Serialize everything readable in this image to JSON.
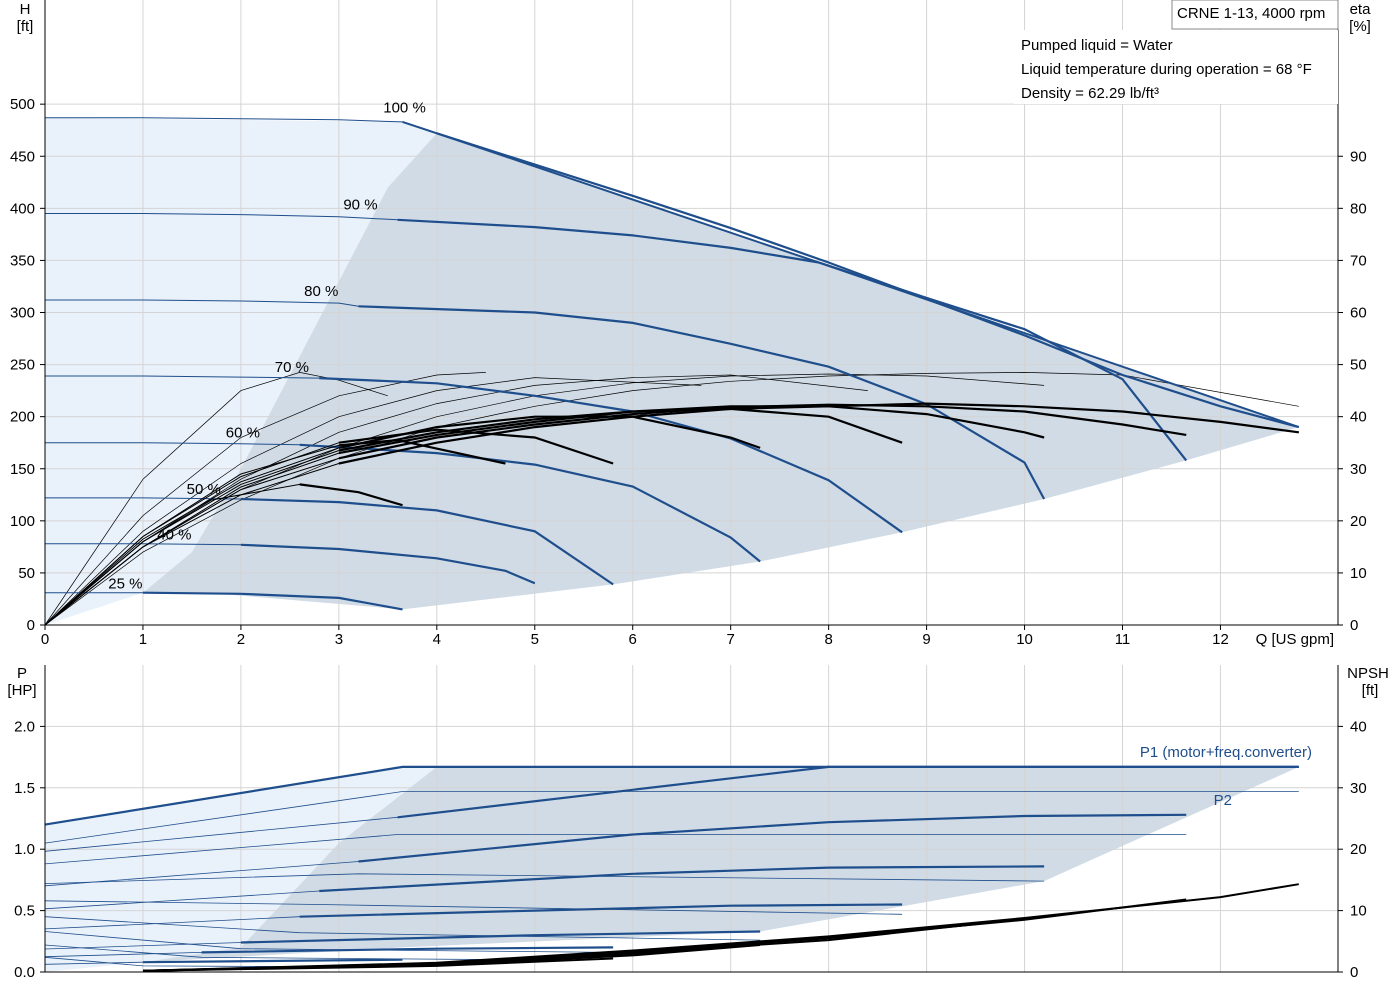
{
  "title_box": "CRNE 1-13, 4000 rpm",
  "info_lines": [
    "Pumped liquid = Water",
    "Liquid temperature during operation = 68 °F",
    "Density = 62.29 lb/ft³"
  ],
  "colors": {
    "curve_blue": "#1f4e8c",
    "shade_dark": "#d0dbe6",
    "shade_light": "#e9f1fa",
    "eff_black": "#000000"
  },
  "chart_data": [
    {
      "type": "line",
      "name_key": "head-efficiency",
      "xlabel": "Q [US gpm]",
      "ylabel": "H\n[ft]",
      "y2label": "eta\n[%]",
      "xlim": [
        0,
        13.2
      ],
      "ylim": [
        0,
        500
      ],
      "y2lim": [
        0,
        100
      ],
      "x_ticks": [
        0,
        1,
        2,
        3,
        4,
        5,
        6,
        7,
        8,
        9,
        10,
        11,
        12
      ],
      "y_ticks": [
        0,
        50,
        100,
        150,
        200,
        250,
        300,
        350,
        400,
        450,
        500
      ],
      "y2_ticks": [
        0,
        10,
        20,
        30,
        40,
        50,
        60,
        70,
        80,
        90
      ],
      "grid": true,
      "speed_labels": [
        "100 %",
        "90 %",
        "80 %",
        "70 %",
        "60 %",
        "50 %",
        "40 %",
        "25 %"
      ],
      "head_curves": [
        {
          "speed": 100,
          "x": [
            0,
            1,
            2,
            3,
            3.65,
            4,
            5,
            6,
            7,
            8,
            9,
            10,
            11,
            12,
            12.8
          ],
          "y": [
            487,
            487,
            486,
            485,
            483,
            472,
            442,
            412,
            381,
            348,
            313,
            278,
            240,
            210,
            190
          ]
        },
        {
          "speed": 90,
          "x": [
            0,
            1,
            2,
            3,
            3.6,
            5,
            6,
            7,
            7.9,
            9,
            10,
            11,
            11.65
          ],
          "y": [
            395,
            395,
            394,
            392,
            389,
            382,
            374,
            362,
            348,
            314,
            284,
            236,
            158
          ]
        },
        {
          "speed": 80,
          "x": [
            0,
            1,
            2,
            3,
            3.2,
            5,
            6,
            7,
            8,
            9,
            10,
            10.2
          ],
          "y": [
            312,
            312,
            311,
            309,
            306,
            300,
            290,
            270,
            248,
            212,
            156,
            121
          ]
        },
        {
          "speed": 70,
          "x": [
            0,
            1,
            2,
            2.8,
            4,
            5,
            6,
            7,
            8,
            8.75
          ],
          "y": [
            239,
            239,
            238,
            237,
            232,
            220,
            205,
            179,
            139,
            89
          ]
        },
        {
          "speed": 60,
          "x": [
            0,
            1,
            2,
            2.6,
            4,
            5,
            6,
            7,
            7.3
          ],
          "y": [
            175,
            175,
            174,
            173,
            165,
            154,
            133,
            84,
            61
          ]
        },
        {
          "speed": 50,
          "x": [
            0,
            1,
            2,
            3,
            4,
            5,
            5.8
          ],
          "y": [
            122,
            122,
            121,
            118,
            110,
            90,
            39
          ]
        },
        {
          "speed": 40,
          "x": [
            0,
            1,
            2,
            3,
            4,
            4.7,
            5
          ],
          "y": [
            78,
            78,
            77,
            73,
            64,
            52,
            40
          ]
        },
        {
          "speed": 25,
          "x": [
            0,
            1,
            2,
            3,
            3.65
          ],
          "y": [
            31,
            31,
            30,
            26,
            15
          ]
        }
      ],
      "efficiency_curves": [
        {
          "x": [
            0,
            1,
            2,
            3,
            4,
            5,
            6,
            7,
            8,
            9,
            10,
            11,
            12,
            12.8
          ],
          "y": [
            0,
            15,
            25,
            31,
            35,
            38,
            40,
            41.5,
            42,
            42.5,
            42,
            41,
            39,
            37
          ]
        },
        {
          "x": [
            0,
            1,
            2,
            3,
            4,
            5,
            6,
            7,
            8,
            9,
            10,
            11,
            11.65
          ],
          "y": [
            0,
            15,
            26,
            32,
            36,
            38.5,
            40.5,
            41.8,
            42.3,
            42,
            41,
            38.5,
            36.5
          ]
        },
        {
          "x": [
            0,
            1,
            2,
            3,
            4,
            5,
            6,
            7,
            8,
            9,
            10,
            10.2
          ],
          "y": [
            0,
            15,
            26.5,
            33,
            36.5,
            39,
            41,
            42,
            42,
            40.5,
            37,
            36
          ]
        },
        {
          "x": [
            0,
            1,
            2,
            3,
            4,
            5,
            6,
            7,
            8,
            8.75
          ],
          "y": [
            0,
            16,
            27,
            33.5,
            37,
            39.5,
            41,
            41.5,
            40,
            35
          ]
        },
        {
          "x": [
            0,
            1,
            2,
            3,
            4,
            5,
            6,
            7,
            7.3
          ],
          "y": [
            0,
            16.5,
            27.5,
            34,
            38,
            40,
            40,
            36,
            34
          ]
        },
        {
          "x": [
            0,
            1,
            2,
            3,
            4,
            5,
            5.8
          ],
          "y": [
            0,
            17,
            28.5,
            35,
            37.5,
            36,
            31
          ]
        },
        {
          "x": [
            0,
            1,
            2,
            3,
            3.6,
            4.7
          ],
          "y": [
            0,
            17,
            29,
            34.5,
            35.5,
            31
          ]
        },
        {
          "x": [
            0,
            1,
            1.7,
            2.6,
            3.2,
            3.65
          ],
          "y": [
            0,
            16,
            24,
            27,
            25.5,
            23
          ]
        }
      ],
      "reference_efficiency_curves": [
        {
          "x": [
            0,
            1,
            2,
            2.6,
            3,
            3.5
          ],
          "y": [
            0,
            28,
            45,
            48.5,
            47,
            44
          ]
        },
        {
          "x": [
            0,
            1,
            2,
            3,
            4,
            4.5
          ],
          "y": [
            0,
            21,
            36,
            44,
            48,
            48.5
          ]
        },
        {
          "x": [
            0,
            1,
            2,
            3,
            4,
            5,
            6.7
          ],
          "y": [
            0,
            18,
            31,
            40,
            45,
            47.5,
            46
          ]
        },
        {
          "x": [
            0,
            1,
            2,
            3,
            4,
            5,
            6,
            7,
            8.4
          ],
          "y": [
            0,
            16,
            28,
            37,
            42.5,
            46,
            47.5,
            48,
            45
          ]
        },
        {
          "x": [
            0,
            1,
            2,
            3,
            4,
            5,
            6,
            7,
            8,
            9,
            10.2
          ],
          "y": [
            0,
            15,
            26,
            34,
            40,
            44,
            46.5,
            47.8,
            48.2,
            47.8,
            46
          ]
        },
        {
          "x": [
            0,
            1,
            2,
            3,
            4,
            5,
            6,
            7,
            8,
            9,
            10,
            11,
            12.8
          ],
          "y": [
            0,
            14,
            24,
            32,
            38,
            42,
            45,
            46.8,
            47.8,
            48.3,
            48.5,
            48,
            42
          ]
        }
      ],
      "operating_envelope": {
        "x": [
          1,
          1.65,
          3.65,
          5.8,
          7.3,
          8.75,
          10.2,
          11.65,
          12.8,
          7.9,
          4.0,
          3.5,
          3.0,
          2.5,
          2.0,
          1.5
        ],
        "y": [
          31,
          31,
          15,
          39,
          61,
          89,
          121,
          158,
          190,
          348,
          472,
          420,
          330,
          240,
          150,
          70
        ]
      }
    },
    {
      "type": "line",
      "name_key": "power-npsh",
      "ylabel": "P\n[HP]",
      "y2label": "NPSH\n[ft]",
      "xlim": [
        0,
        13.2
      ],
      "ylim": [
        0,
        2.0
      ],
      "y2lim": [
        0,
        40
      ],
      "y_ticks": [
        0.0,
        0.5,
        1.0,
        1.5,
        2.0
      ],
      "y_tick_labels": [
        "0.0",
        "0.5",
        "1.0",
        "1.5",
        "2.0"
      ],
      "y2_ticks": [
        0,
        10,
        20,
        30,
        40
      ],
      "grid": true,
      "series_labels": [
        "P1 (motor+freq.converter)",
        "P2"
      ],
      "p1_curves": [
        {
          "x": [
            0,
            3.65,
            4,
            8,
            12.8
          ],
          "y": [
            1.2,
            1.67,
            1.67,
            1.67,
            1.67
          ]
        },
        {
          "x": [
            3.6,
            8,
            12.8
          ],
          "y": [
            1.26,
            1.67,
            1.67
          ]
        },
        {
          "x": [
            3.2,
            6,
            8,
            10,
            11.65
          ],
          "y": [
            0.9,
            1.12,
            1.22,
            1.27,
            1.28
          ]
        },
        {
          "x": [
            2.8,
            6,
            8,
            10.2
          ],
          "y": [
            0.66,
            0.8,
            0.85,
            0.86
          ]
        },
        {
          "x": [
            2.6,
            5,
            7,
            8.75
          ],
          "y": [
            0.45,
            0.5,
            0.54,
            0.55
          ]
        },
        {
          "x": [
            2.0,
            5,
            7.3
          ],
          "y": [
            0.24,
            0.3,
            0.33
          ]
        },
        {
          "x": [
            1.6,
            4,
            5.8
          ],
          "y": [
            0.16,
            0.19,
            0.2
          ]
        },
        {
          "x": [
            1.0,
            3.65
          ],
          "y": [
            0.08,
            0.1
          ]
        }
      ],
      "p2_curves": [
        {
          "x": [
            0,
            3.65,
            12.8
          ],
          "y": [
            1.05,
            1.47,
            1.47
          ]
        },
        {
          "x": [
            0,
            3.6,
            11.65
          ],
          "y": [
            0.88,
            1.12,
            1.12
          ]
        },
        {
          "x": [
            0,
            3.2,
            10.2
          ],
          "y": [
            0.72,
            0.8,
            0.74
          ]
        },
        {
          "x": [
            0,
            2.8,
            8.75
          ],
          "y": [
            0.58,
            0.55,
            0.47
          ]
        },
        {
          "x": [
            0,
            2.6,
            7.3
          ],
          "y": [
            0.45,
            0.32,
            0.26
          ]
        },
        {
          "x": [
            0,
            2.0,
            5.8
          ],
          "y": [
            0.33,
            0.19,
            0.16
          ]
        },
        {
          "x": [
            0,
            1.6,
            4.7
          ],
          "y": [
            0.22,
            0.12,
            0.1
          ]
        },
        {
          "x": [
            0,
            1.0,
            3.65
          ],
          "y": [
            0.12,
            0.05,
            0.04
          ]
        }
      ],
      "npsh_curves": [
        {
          "x": [
            1.0,
            4,
            6,
            8,
            10,
            12,
            12.8
          ],
          "y": [
            0.2,
            1.5,
            3.5,
            5.8,
            8.8,
            12.2,
            14.3
          ]
        },
        {
          "x": [
            1.0,
            4,
            6,
            8,
            10,
            11.65
          ],
          "y": [
            0.2,
            1.4,
            3.3,
            5.5,
            8.5,
            11.8
          ]
        },
        {
          "x": [
            1.0,
            4,
            6,
            8,
            10.2
          ],
          "y": [
            0.2,
            1.3,
            3.1,
            5.2,
            9.0
          ]
        },
        {
          "x": [
            1.0,
            4,
            6,
            8.75
          ],
          "y": [
            0.2,
            1.2,
            2.9,
            6.8
          ]
        },
        {
          "x": [
            1.0,
            4,
            6,
            7.3
          ],
          "y": [
            0.2,
            1.1,
            2.7,
            4.4
          ]
        },
        {
          "x": [
            1.0,
            4,
            5.8
          ],
          "y": [
            0.2,
            1.0,
            2.2
          ]
        }
      ],
      "operating_envelope": {
        "x": [
          1,
          3.65,
          7.3,
          10.2,
          12.8,
          4.0,
          3.0,
          2.0
        ],
        "y": [
          0.08,
          0.2,
          0.33,
          0.74,
          1.67,
          1.67,
          1.05,
          0.2
        ]
      }
    }
  ]
}
